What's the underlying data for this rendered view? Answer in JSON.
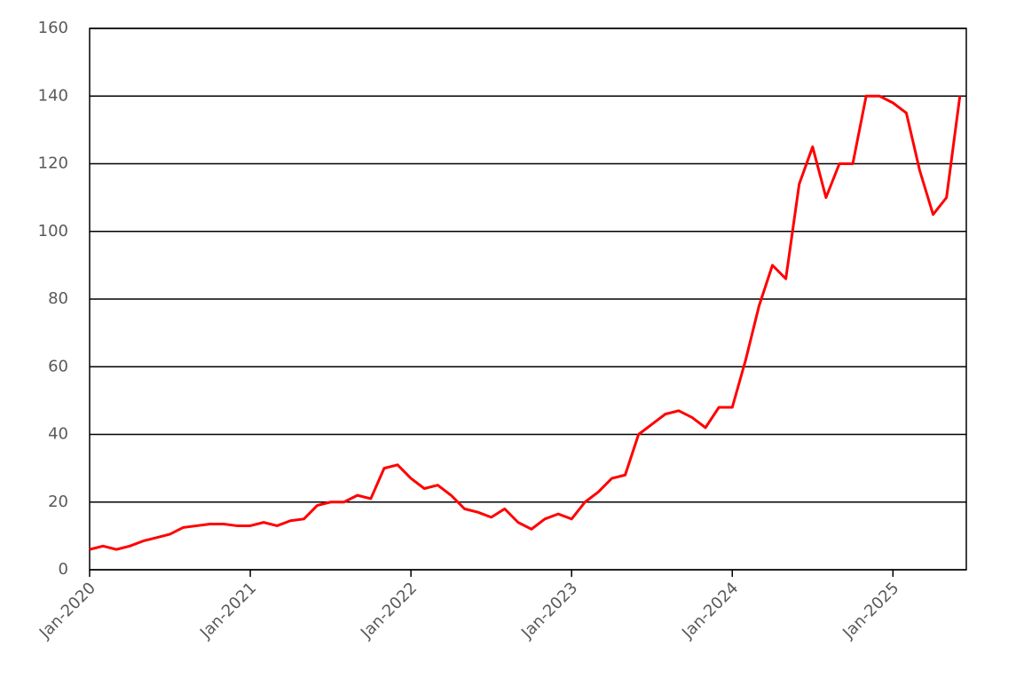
{
  "chart_data": {
    "type": "line",
    "x": [
      "2020-01",
      "2020-02",
      "2020-03",
      "2020-04",
      "2020-05",
      "2020-06",
      "2020-07",
      "2020-08",
      "2020-09",
      "2020-10",
      "2020-11",
      "2020-12",
      "2021-01",
      "2021-02",
      "2021-03",
      "2021-04",
      "2021-05",
      "2021-06",
      "2021-07",
      "2021-08",
      "2021-09",
      "2021-10",
      "2021-11",
      "2021-12",
      "2022-01",
      "2022-02",
      "2022-03",
      "2022-04",
      "2022-05",
      "2022-06",
      "2022-07",
      "2022-08",
      "2022-09",
      "2022-10",
      "2022-11",
      "2022-12",
      "2023-01",
      "2023-02",
      "2023-03",
      "2023-04",
      "2023-05",
      "2023-06",
      "2023-07",
      "2023-08",
      "2023-09",
      "2023-10",
      "2023-11",
      "2023-12",
      "2024-01",
      "2024-02",
      "2024-03",
      "2024-04",
      "2024-05",
      "2024-06",
      "2024-07",
      "2024-08",
      "2024-09",
      "2024-10",
      "2024-11",
      "2024-12",
      "2025-01",
      "2025-02",
      "2025-03",
      "2025-04",
      "2025-05",
      "2025-06"
    ],
    "series": [
      {
        "color": "#ff0000",
        "values": [
          6,
          7,
          6,
          7,
          8.5,
          9.5,
          10.5,
          12.5,
          13,
          13.5,
          13.5,
          13,
          13,
          14,
          13,
          14.5,
          15,
          19,
          20,
          20,
          22,
          21,
          30,
          31,
          27,
          24,
          25,
          22,
          18,
          17,
          15.5,
          18,
          14,
          12,
          15,
          16.5,
          15,
          20,
          23,
          27,
          28,
          40,
          43,
          46,
          47,
          45,
          42,
          48,
          48,
          62,
          78,
          90,
          86,
          114,
          125,
          110,
          120,
          120,
          140,
          140,
          138,
          135,
          118,
          105,
          110,
          140
        ]
      }
    ],
    "xlim": [
      "2020-01",
      "2025-06"
    ],
    "xticks": [
      {
        "value": "2020-01",
        "label": "Jan-2020"
      },
      {
        "value": "2021-01",
        "label": "Jan-2021"
      },
      {
        "value": "2022-01",
        "label": "Jan-2022"
      },
      {
        "value": "2023-01",
        "label": "Jan-2023"
      },
      {
        "value": "2024-01",
        "label": "Jan-2024"
      },
      {
        "value": "2025-01",
        "label": "Jan-2025"
      }
    ],
    "ylim": [
      0,
      160
    ],
    "yticks": [
      0,
      20,
      40,
      60,
      80,
      100,
      120,
      140,
      160
    ],
    "grid": true
  }
}
